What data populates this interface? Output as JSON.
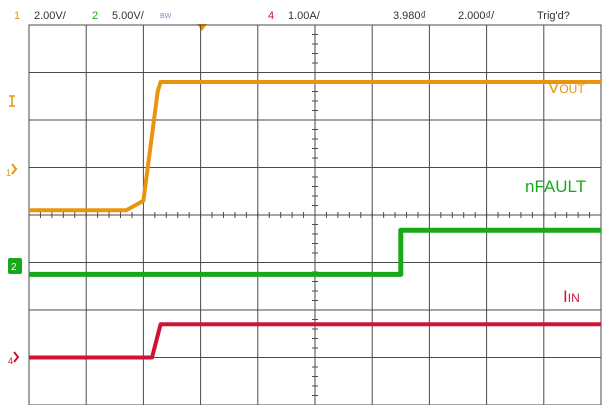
{
  "header": {
    "ch1_num": "1",
    "ch1_scale": "2.00V/",
    "ch2_num": "2",
    "ch2_scale": "5.00V/",
    "bw": "BW",
    "ch4_num": "4",
    "ch4_scale": "1.00A/",
    "time_offset": "3.980₫",
    "timebase": "2.000₫/",
    "trigger_status": "Trig'd?"
  },
  "colors": {
    "ch1": "#e8950e",
    "ch2": "#19a819",
    "ch4": "#cf1236",
    "grid": "#4a4a4a",
    "header_text": "#333333",
    "bw": "#7a8cc9"
  },
  "chart_data": {
    "type": "line",
    "x_divisions": 10,
    "y_divisions": 8,
    "series": [
      {
        "name": "VOUT",
        "channel": "1",
        "color": "#e8950e",
        "x": [
          0,
          1.7,
          2.0,
          2.25,
          2.3,
          10
        ],
        "y": [
          4.1,
          4.1,
          4.3,
          6.6,
          6.8,
          6.8
        ]
      },
      {
        "name": "nFAULT",
        "channel": "2",
        "color": "#19a819",
        "x": [
          0,
          6.5,
          6.5,
          10
        ],
        "y": [
          2.75,
          2.75,
          3.68,
          3.68
        ]
      },
      {
        "name": "IIN",
        "channel": "4",
        "color": "#cf1236",
        "x": [
          0,
          2.15,
          2.3,
          10
        ],
        "y": [
          1.0,
          1.0,
          1.7,
          1.7
        ]
      }
    ],
    "labels": [
      {
        "main": "V",
        "sub": "OUT",
        "series": "VOUT"
      },
      {
        "main": "nFAULT",
        "sub": "",
        "series": "nFAULT"
      },
      {
        "main": "I",
        "sub": "IN",
        "series": "IIN"
      }
    ]
  }
}
